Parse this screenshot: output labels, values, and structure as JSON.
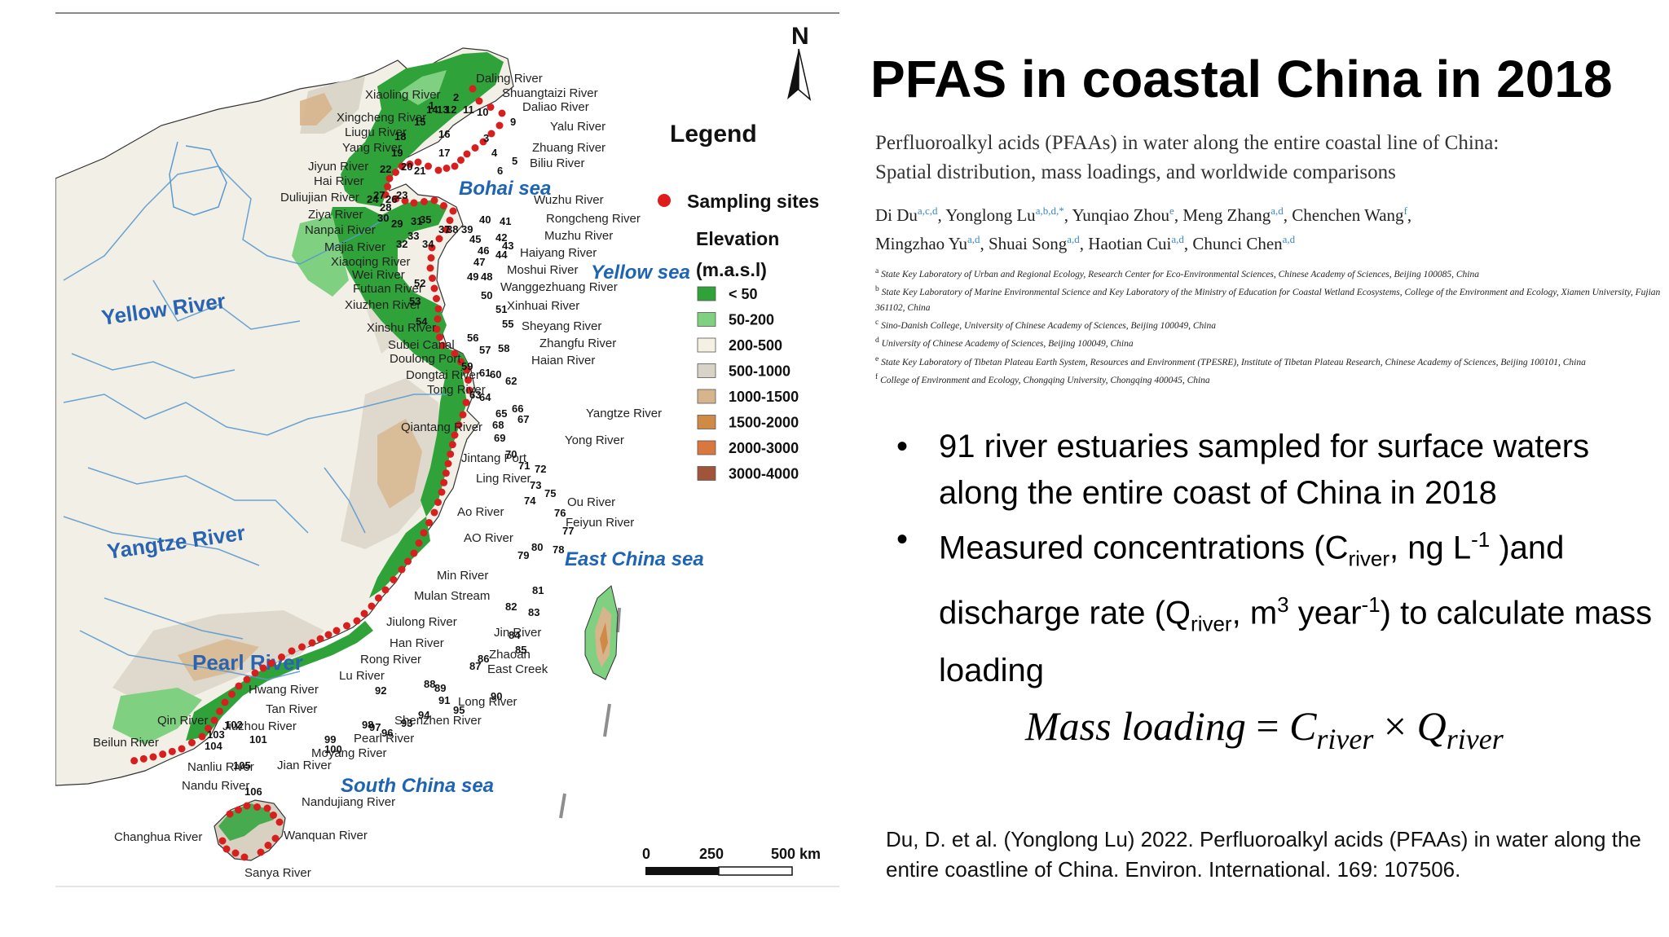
{
  "map": {
    "north_label": "N",
    "legend_title": "Legend",
    "sampling_label": "Sampling sites",
    "elevation_title": "Elevation",
    "elevation_unit": "(m.a.s.l)",
    "elevation_classes": [
      {
        "label": "< 50",
        "color": "#2fa33a"
      },
      {
        "label": "50-200",
        "color": "#7fd080"
      },
      {
        "label": "200-500",
        "color": "#f4f1e2"
      },
      {
        "label": "500-1000",
        "color": "#d8d3c6"
      },
      {
        "label": "1000-1500",
        "color": "#d7b58c"
      },
      {
        "label": "1500-2000",
        "color": "#cf8a46"
      },
      {
        "label": "2000-3000",
        "color": "#d9773e"
      },
      {
        "label": "3000-4000",
        "color": "#a0553b"
      }
    ],
    "seas": {
      "bohai": "Bohai sea",
      "yellow": "Yellow sea",
      "east_china": "East China sea",
      "south_china": "South China sea"
    },
    "big_rivers": {
      "yellow": "Yellow River",
      "yangtze": "Yangtze River",
      "pearl": "Pearl River"
    },
    "scale": {
      "zero": "0",
      "mid": "250",
      "end": "500 km"
    },
    "river_labels": {
      "daling": "Daling River",
      "xiaoling": "Xiaoling River",
      "shuangtaizi": "Shuangtaizi River",
      "daliao": "Daliao River",
      "xingcheng": "Xingcheng River",
      "liugu": "Liugu River",
      "yalu": "Yalu River",
      "yang": "Yang River",
      "zhuang": "Zhuang River",
      "biliu": "Biliu River",
      "jiyun": "Jiyun River",
      "hai": "Hai River",
      "duliujian": "Duliujian River",
      "wuzhu": "Wuzhu River",
      "ziya": "Ziya River",
      "rongcheng": "Rongcheng River",
      "nanpai": "Nanpai River",
      "muzhu": "Muzhu River",
      "majia": "Majia River",
      "haiyang": "Haiyang River",
      "xiaoqing": "Xiaoqing River",
      "moshui": "Moshui River",
      "wei": "Wei River",
      "futuan": "Futuan River",
      "wanggezhuang": "Wanggezhuang River",
      "xiuzhen": "Xiuzhen River",
      "xinhuai": "Xinhuai River",
      "xinshu": "Xinshu River",
      "sheyang": "Sheyang River",
      "subei": "Subei Canal",
      "zhangfu": "Zhangfu River",
      "doulong": "Doulong Port",
      "haian": "Haian River",
      "dongtai": "Dongtai River",
      "tong": "Tong River",
      "yangtze_s": "Yangtze River",
      "qiantang": "Qiantang River",
      "yong": "Yong River",
      "jintang": "Jintang Port",
      "ling": "Ling River",
      "ou": "Ou River",
      "ao": "Ao River",
      "feiyun": "Feiyun River",
      "ao2": "AO River",
      "min": "Min River",
      "mulan": "Mulan Stream",
      "jiulong": "Jiulong River",
      "jin": "Jin River",
      "han": "Han River",
      "zhaoan": "Zhaoan",
      "east_creek": "East Creek",
      "rong": "Rong River",
      "lu": "Lu River",
      "huang": "Hwang River",
      "long": "Long River",
      "tan": "Tan River",
      "shenzhen": "Shenzhen River",
      "qin": "Qin River",
      "jiuzhou": "Jiuzhou River",
      "beilun": "Beilun River",
      "pearl_s": "Pearl River",
      "moyang": "Moyang River",
      "nanliu": "Nanliu River",
      "jian": "Jian River",
      "nandu": "Nandu River",
      "nandujiang": "Nandujiang River",
      "changhua": "Changhua River",
      "wanquan": "Wanquan River",
      "sanya": "Sanya River"
    },
    "site_numbers": [
      "1",
      "2",
      "3",
      "4",
      "5",
      "6",
      "9",
      "10",
      "11",
      "12",
      "13",
      "14",
      "15",
      "16",
      "17",
      "18",
      "19",
      "20",
      "21",
      "22",
      "23",
      "24",
      "26",
      "27",
      "28",
      "29",
      "30",
      "31",
      "32",
      "33",
      "34",
      "35",
      "37",
      "38",
      "39",
      "40",
      "41",
      "42",
      "43",
      "44",
      "45",
      "46",
      "47",
      "48",
      "49",
      "50",
      "51",
      "52",
      "53",
      "54",
      "55",
      "56",
      "57",
      "58",
      "59",
      "60",
      "61",
      "62",
      "63",
      "64",
      "65",
      "66",
      "67",
      "68",
      "69",
      "70",
      "71",
      "72",
      "73",
      "74",
      "75",
      "76",
      "77",
      "78",
      "79",
      "80",
      "81",
      "82",
      "83",
      "84",
      "85",
      "86",
      "87",
      "88",
      "89",
      "90",
      "91",
      "92",
      "93",
      "94",
      "95",
      "96",
      "97",
      "98",
      "99",
      "100",
      "101",
      "102",
      "103",
      "104",
      "105",
      "106"
    ]
  },
  "slide": {
    "title": "PFAS in coastal China in 2018",
    "paper": {
      "title_line1": "Perfluoroalkyl acids (PFAAs) in water along the entire coastal line of China:",
      "title_line2": "Spatial distribution, mass loadings, and worldwide comparisons",
      "authors": [
        {
          "name": "Di Du",
          "sup": "a,c,d"
        },
        {
          "name": "Yonglong Lu",
          "sup": "a,b,d,*"
        },
        {
          "name": "Yunqiao Zhou",
          "sup": "e"
        },
        {
          "name": "Meng Zhang",
          "sup": "a,d"
        },
        {
          "name": "Chenchen Wang",
          "sup": "f"
        },
        {
          "name": "Mingzhao Yu",
          "sup": "a,d"
        },
        {
          "name": "Shuai Song",
          "sup": "a,d"
        },
        {
          "name": "Haotian Cui",
          "sup": "a,d"
        },
        {
          "name": "Chunci Chen",
          "sup": "a,d"
        }
      ],
      "affiliations": [
        {
          "key": "a",
          "text": "State Key Laboratory of Urban and Regional Ecology, Research Center for Eco-Environmental Sciences, Chinese Academy of Sciences, Beijing 100085, China"
        },
        {
          "key": "b",
          "text": "State Key Laboratory of Marine Environmental Science and Key Laboratory of the Ministry of Education for Coastal Wetland Ecosystems, College of the Environment and Ecology, Xiamen University, Fujian 361102, China"
        },
        {
          "key": "c",
          "text": "Sino-Danish College, University of Chinese Academy of Sciences, Beijing 100049, China"
        },
        {
          "key": "d",
          "text": "University of Chinese Academy of Sciences, Beijing 100049, China"
        },
        {
          "key": "e",
          "text": "State Key Laboratory of Tibetan Plateau Earth System, Resources and Environment (TPESRE), Institute of Tibetan Plateau Research, Chinese Academy of Sciences, Beijing 100101, China"
        },
        {
          "key": "f",
          "text": "College of Environment and Ecology, Chongqing University, Chongqing 400045, China"
        }
      ]
    },
    "bullet_symbol": "•",
    "bullet1": "91 river estuaries sampled for surface waters along the entire coast of China in 2018",
    "bullet2": {
      "p1": "Measured concentrations (C",
      "sub1": "river",
      "p2": ", ng L",
      "sup1": "-1",
      "p3": " )and discharge rate (Q",
      "sub2": "river",
      "p4": ", m",
      "sup2": "3",
      "p5": " year",
      "sup3": "-1",
      "p6": ") to calculate mass loading"
    },
    "formula": {
      "lhs": "Mass loading",
      "eq": " = ",
      "c": "C",
      "c_sub": "river",
      "times": " × ",
      "q": "Q",
      "q_sub": "river"
    },
    "citation": "Du, D. et al. (Yonglong Lu) 2022. Perfluoroalkyl acids (PFAAs) in water along the entire coastline of China. Environ. International. 169: 107506."
  }
}
